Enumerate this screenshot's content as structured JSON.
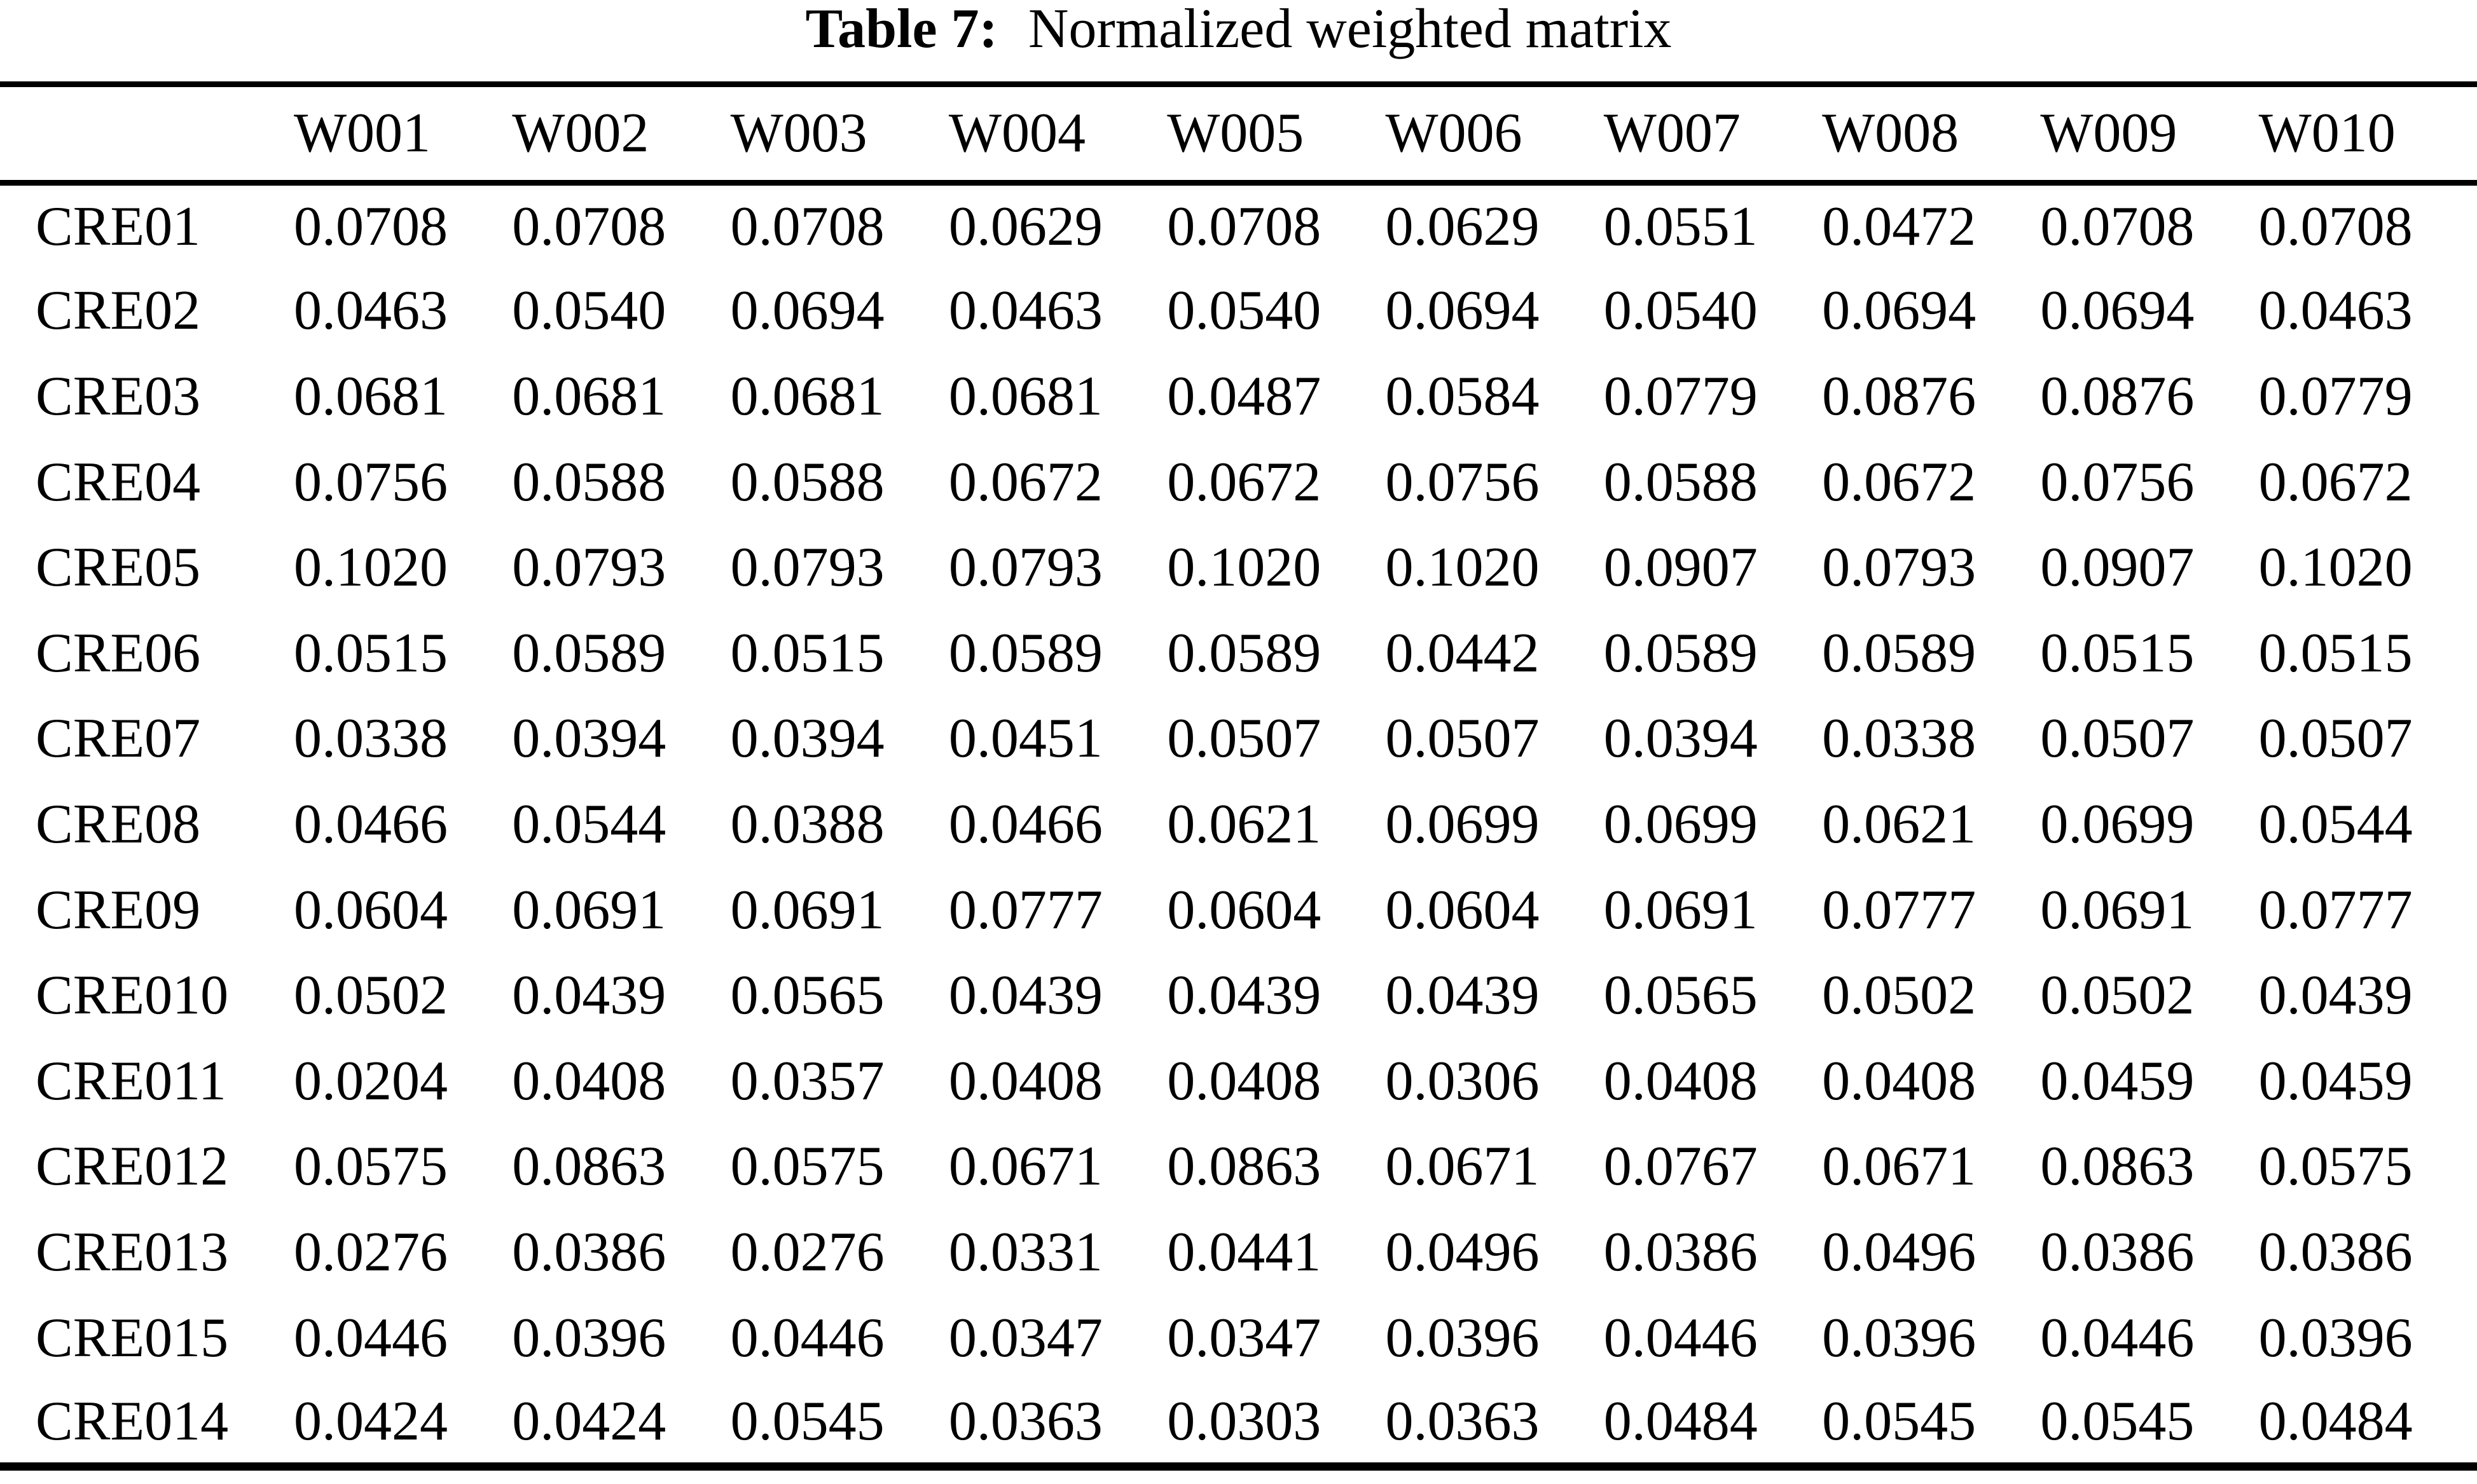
{
  "caption": {
    "label": "Table 7:",
    "text": "Normalized weighted matrix"
  },
  "table": {
    "columns": [
      "W001",
      "W002",
      "W003",
      "W004",
      "W005",
      "W006",
      "W007",
      "W008",
      "W009",
      "W010"
    ],
    "rows": [
      {
        "label": "CRE01",
        "values": [
          "0.0708",
          "0.0708",
          "0.0708",
          "0.0629",
          "0.0708",
          "0.0629",
          "0.0551",
          "0.0472",
          "0.0708",
          "0.0708"
        ]
      },
      {
        "label": "CRE02",
        "values": [
          "0.0463",
          "0.0540",
          "0.0694",
          "0.0463",
          "0.0540",
          "0.0694",
          "0.0540",
          "0.0694",
          "0.0694",
          "0.0463"
        ]
      },
      {
        "label": "CRE03",
        "values": [
          "0.0681",
          "0.0681",
          "0.0681",
          "0.0681",
          "0.0487",
          "0.0584",
          "0.0779",
          "0.0876",
          "0.0876",
          "0.0779"
        ]
      },
      {
        "label": "CRE04",
        "values": [
          "0.0756",
          "0.0588",
          "0.0588",
          "0.0672",
          "0.0672",
          "0.0756",
          "0.0588",
          "0.0672",
          "0.0756",
          "0.0672"
        ]
      },
      {
        "label": "CRE05",
        "values": [
          "0.1020",
          "0.0793",
          "0.0793",
          "0.0793",
          "0.1020",
          "0.1020",
          "0.0907",
          "0.0793",
          "0.0907",
          "0.1020"
        ]
      },
      {
        "label": "CRE06",
        "values": [
          "0.0515",
          "0.0589",
          "0.0515",
          "0.0589",
          "0.0589",
          "0.0442",
          "0.0589",
          "0.0589",
          "0.0515",
          "0.0515"
        ]
      },
      {
        "label": "CRE07",
        "values": [
          "0.0338",
          "0.0394",
          "0.0394",
          "0.0451",
          "0.0507",
          "0.0507",
          "0.0394",
          "0.0338",
          "0.0507",
          "0.0507"
        ]
      },
      {
        "label": "CRE08",
        "values": [
          "0.0466",
          "0.0544",
          "0.0388",
          "0.0466",
          "0.0621",
          "0.0699",
          "0.0699",
          "0.0621",
          "0.0699",
          "0.0544"
        ]
      },
      {
        "label": "CRE09",
        "values": [
          "0.0604",
          "0.0691",
          "0.0691",
          "0.0777",
          "0.0604",
          "0.0604",
          "0.0691",
          "0.0777",
          "0.0691",
          "0.0777"
        ]
      },
      {
        "label": "CRE010",
        "values": [
          "0.0502",
          "0.0439",
          "0.0565",
          "0.0439",
          "0.0439",
          "0.0439",
          "0.0565",
          "0.0502",
          "0.0502",
          "0.0439"
        ]
      },
      {
        "label": "CRE011",
        "values": [
          "0.0204",
          "0.0408",
          "0.0357",
          "0.0408",
          "0.0408",
          "0.0306",
          "0.0408",
          "0.0408",
          "0.0459",
          "0.0459"
        ]
      },
      {
        "label": "CRE012",
        "values": [
          "0.0575",
          "0.0863",
          "0.0575",
          "0.0671",
          "0.0863",
          "0.0671",
          "0.0767",
          "0.0671",
          "0.0863",
          "0.0575"
        ]
      },
      {
        "label": "CRE013",
        "values": [
          "0.0276",
          "0.0386",
          "0.0276",
          "0.0331",
          "0.0441",
          "0.0496",
          "0.0386",
          "0.0496",
          "0.0386",
          "0.0386"
        ]
      },
      {
        "label": "CRE015",
        "values": [
          "0.0446",
          "0.0396",
          "0.0446",
          "0.0347",
          "0.0347",
          "0.0396",
          "0.0446",
          "0.0396",
          "0.0446",
          "0.0396"
        ]
      },
      {
        "label": "CRE014",
        "values": [
          "0.0424",
          "0.0424",
          "0.0545",
          "0.0363",
          "0.0303",
          "0.0363",
          "0.0484",
          "0.0545",
          "0.0545",
          "0.0484"
        ]
      }
    ]
  }
}
